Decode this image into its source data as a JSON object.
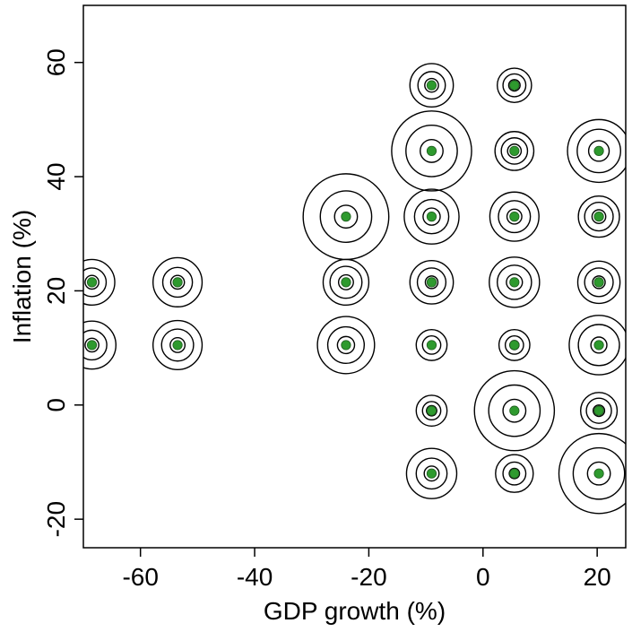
{
  "chart_data": {
    "type": "scatter",
    "title": "",
    "xlabel": "GDP growth (%)",
    "ylabel": "Inflation (%)",
    "xlim": [
      -70,
      25
    ],
    "ylim": [
      -25,
      70
    ],
    "xticks": [
      -60,
      -40,
      -20,
      0,
      20
    ],
    "yticks": [
      -20,
      0,
      20,
      40,
      60
    ],
    "xtick_labels": [
      "-60",
      "-40",
      "-20",
      "0",
      "20"
    ],
    "ytick_labels": [
      "-20",
      "0",
      "20",
      "40",
      "60"
    ],
    "grid": false,
    "point_color": "#2e9a2e",
    "ring_color": "#000000",
    "points": [
      {
        "x": 5.5,
        "y": 56.0,
        "rings": [
          1.0,
          2.0,
          3.0
        ]
      },
      {
        "x": -9.0,
        "y": 56.0,
        "rings": [
          1.2,
          2.4,
          3.8
        ]
      },
      {
        "x": -9.0,
        "y": 44.5,
        "rings": [
          2.0,
          4.5,
          7.0
        ]
      },
      {
        "x": 5.5,
        "y": 44.5,
        "rings": [
          1.2,
          2.3,
          3.4
        ]
      },
      {
        "x": 20.3,
        "y": 44.5,
        "rings": [
          1.8,
          3.8,
          5.5
        ]
      },
      {
        "x": -24.0,
        "y": 33.0,
        "rings": [
          2.0,
          4.5,
          7.5
        ]
      },
      {
        "x": -9.0,
        "y": 33.0,
        "rings": [
          1.5,
          3.0,
          4.8
        ]
      },
      {
        "x": 5.5,
        "y": 33.0,
        "rings": [
          1.3,
          2.8,
          4.3
        ]
      },
      {
        "x": 20.3,
        "y": 33.0,
        "rings": [
          1.2,
          2.5,
          3.6
        ]
      },
      {
        "x": -68.5,
        "y": 21.5,
        "rings": [
          1.2,
          2.5,
          4.0
        ]
      },
      {
        "x": -53.5,
        "y": 21.5,
        "rings": [
          1.2,
          2.6,
          4.3
        ]
      },
      {
        "x": -24.0,
        "y": 21.5,
        "rings": [
          1.3,
          2.8,
          4.0
        ]
      },
      {
        "x": -9.0,
        "y": 21.5,
        "rings": [
          1.1,
          2.5,
          3.8
        ]
      },
      {
        "x": 5.5,
        "y": 21.5,
        "rings": [
          1.4,
          3.0,
          4.4
        ]
      },
      {
        "x": 20.3,
        "y": 21.5,
        "rings": [
          1.1,
          2.5,
          3.7
        ]
      },
      {
        "x": -68.5,
        "y": 10.5,
        "rings": [
          1.2,
          2.6,
          4.2
        ]
      },
      {
        "x": -53.5,
        "y": 10.5,
        "rings": [
          1.3,
          2.8,
          4.3
        ]
      },
      {
        "x": -24.0,
        "y": 10.5,
        "rings": [
          1.5,
          3.2,
          5.0
        ]
      },
      {
        "x": -9.0,
        "y": 10.5,
        "rings": [
          0.7,
          1.6,
          2.7
        ]
      },
      {
        "x": 5.5,
        "y": 10.5,
        "rings": [
          0.8,
          1.6,
          2.7
        ]
      },
      {
        "x": 20.3,
        "y": 10.5,
        "rings": [
          1.4,
          3.6,
          5.2
        ]
      },
      {
        "x": -9.0,
        "y": -1.0,
        "rings": [
          0.9,
          1.6,
          2.7
        ]
      },
      {
        "x": 5.5,
        "y": -1.0,
        "rings": [
          2.0,
          4.5,
          7.0
        ]
      },
      {
        "x": 20.3,
        "y": -1.0,
        "rings": [
          1.0,
          2.2,
          3.2
        ]
      },
      {
        "x": -9.0,
        "y": -12.0,
        "rings": [
          1.3,
          2.7,
          4.4
        ]
      },
      {
        "x": 5.5,
        "y": -12.0,
        "rings": [
          0.9,
          2.0,
          3.3
        ]
      },
      {
        "x": 20.3,
        "y": -12.0,
        "rings": [
          2.0,
          4.5,
          7.0
        ]
      }
    ]
  }
}
